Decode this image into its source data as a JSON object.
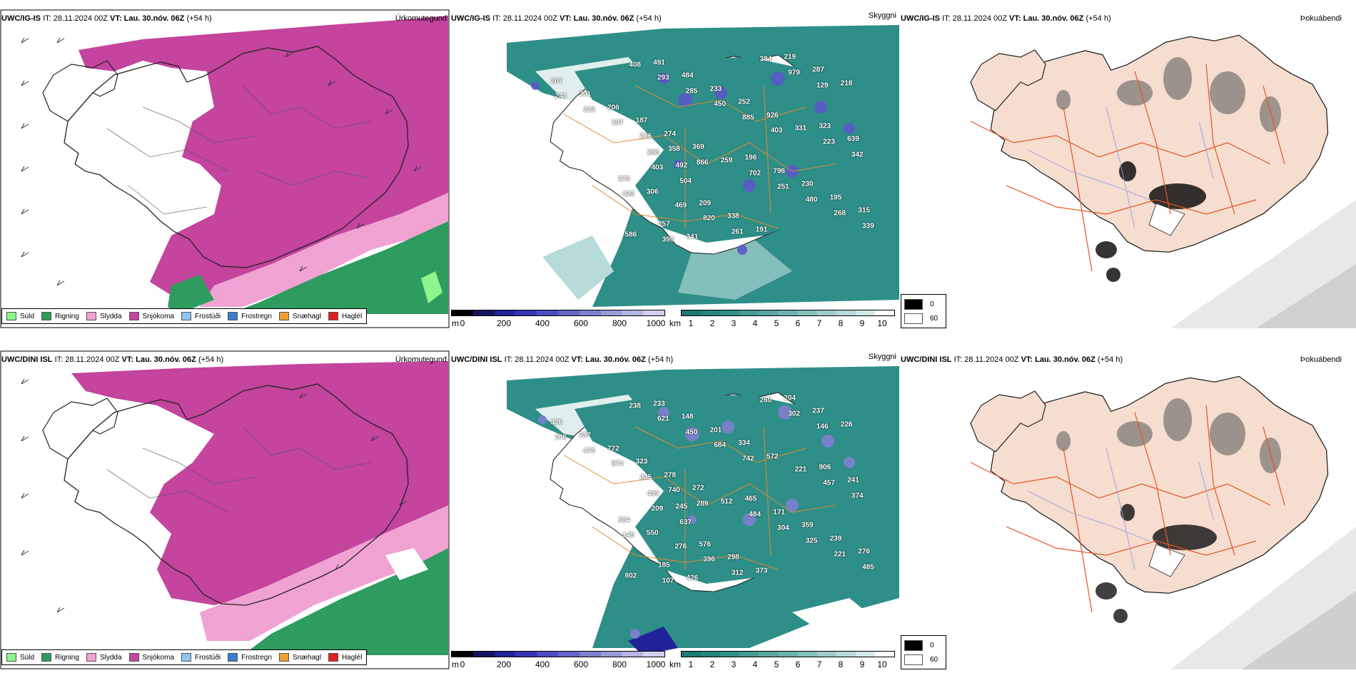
{
  "rows": [
    {
      "precip": {
        "model": "UWC/IG-IS",
        "it": "IT: 28.11.2024 00Z",
        "vt_label": "VT:",
        "vt": "Lau. 30.nóv. 06Z",
        "lead": "(+54 h)",
        "field": "Úrkomutegund"
      },
      "vis": {
        "model": "UWC/IG-IS",
        "it": "IT: 28.11.2024 00Z",
        "vt_label": "VT:",
        "vt": "Lau. 30.nóv. 06Z",
        "lead": "(+54 h)",
        "field": "Skyggni",
        "labels": [
          "207",
          "196",
          "586",
          "323",
          "209",
          "301",
          "796",
          "491",
          "639",
          "338",
          "206",
          "230",
          "484",
          "286",
          "191",
          "187",
          "195",
          "233",
          "492",
          "219",
          "274",
          "315",
          "252",
          "276",
          "287",
          "369",
          "257",
          "926",
          "306",
          "218",
          "259",
          "341",
          "331",
          "469",
          "243",
          "702",
          "408",
          "223",
          "820",
          "229",
          "251",
          "293",
          "342",
          "261",
          "197",
          "480",
          "285",
          "403",
          "384",
          "216",
          "268",
          "450",
          "504",
          "979",
          "358",
          "339",
          "885",
          "439",
          "129",
          "866",
          "399",
          "403"
        ]
      },
      "fog": {
        "model": "UWC/IG-IS",
        "it": "IT: 28.11.2024 00Z",
        "vt_label": "VT:",
        "vt": "Lau. 30.nóv. 06Z",
        "lead": "(+54 h)",
        "field": "Þokuábendi"
      }
    },
    {
      "precip": {
        "model": "UWC/DINI ISL",
        "it": "IT: 28.11.2024 00Z",
        "vt_label": "VT:",
        "vt": "Lau. 30.nóv. 06Z",
        "lead": "(+54 h)",
        "field": "Úrkomutegund"
      },
      "vis": {
        "model": "UWC/DINI ISL",
        "it": "IT: 28.11.2024 00Z",
        "vt_label": "VT:",
        "vt": "Lau. 30.nóv. 06Z",
        "lead": "(+54 h)",
        "field": "Skyggni",
        "labels": [
          "326",
          "465",
          "802",
          "906",
          "576",
          "287",
          "171",
          "233",
          "241",
          "298",
          "772",
          "359",
          "148",
          "439",
          "373",
          "323",
          "239",
          "201",
          "245",
          "204",
          "278",
          "276",
          "334",
          "384",
          "237",
          "272",
          "185",
          "572",
          "550",
          "226",
          "512",
          "426",
          "221",
          "276",
          "246",
          "484",
          "238",
          "457",
          "396",
          "476",
          "304",
          "621",
          "374",
          "312",
          "574",
          "325",
          "450",
          "209",
          "260",
          "245",
          "221",
          "684",
          "637",
          "302",
          "740",
          "485",
          "742",
          "148",
          "146",
          "289",
          "107"
        ]
      },
      "fog": {
        "model": "UWC/DINI ISL",
        "it": "IT: 28.11.2024 00Z",
        "vt_label": "VT:",
        "vt": "Lau. 30.nóv. 06Z",
        "lead": "(+54 h)",
        "field": "Þokuábendi"
      }
    }
  ],
  "precip_legend": [
    {
      "label": "Súld",
      "color": "#8cf58c"
    },
    {
      "label": "Rigning",
      "color": "#2e9b5f"
    },
    {
      "label": "Slydda",
      "color": "#f0a3d2"
    },
    {
      "label": "Snjókoma",
      "color": "#c4449e"
    },
    {
      "label": "Frostúði",
      "color": "#8ec5f0"
    },
    {
      "label": "Frostregn",
      "color": "#3a7fd0"
    },
    {
      "label": "Snæhagl",
      "color": "#f0a030"
    },
    {
      "label": "Haglél",
      "color": "#e02020"
    }
  ],
  "elev_bar": {
    "unit": "m",
    "ticks": [
      "0",
      "200",
      "400",
      "600",
      "800",
      "1000"
    ],
    "colors": [
      "#000000",
      "#151560",
      "#22229a",
      "#3535b5",
      "#4c4cc0",
      "#6565c8",
      "#7f7fd0",
      "#9a9ad8",
      "#b5b5e3",
      "#d0d0ee"
    ]
  },
  "vis_bar": {
    "unit": "km",
    "ticks": [
      "1",
      "2",
      "3",
      "4",
      "5",
      "6",
      "7",
      "8",
      "9",
      "10"
    ],
    "colors": [
      "#1a7a75",
      "#24857f",
      "#318f89",
      "#449a94",
      "#58a6a0",
      "#6db2ad",
      "#84bfbb",
      "#9ccdca",
      "#b6dbd9",
      "#d2e9e8",
      "#ffffff"
    ]
  },
  "fog_legend": [
    {
      "label": "0",
      "color": "#000000"
    },
    {
      "label": "60",
      "color": "#ffffff"
    }
  ],
  "colors": {
    "snow": "#c4449e",
    "sleet": "#f0a3d2",
    "rain": "#2e9b5f",
    "teal": "#2e8f88",
    "land": "#f5ddd0",
    "roads": "#e8541e",
    "orange_roads": "#e0892e"
  }
}
